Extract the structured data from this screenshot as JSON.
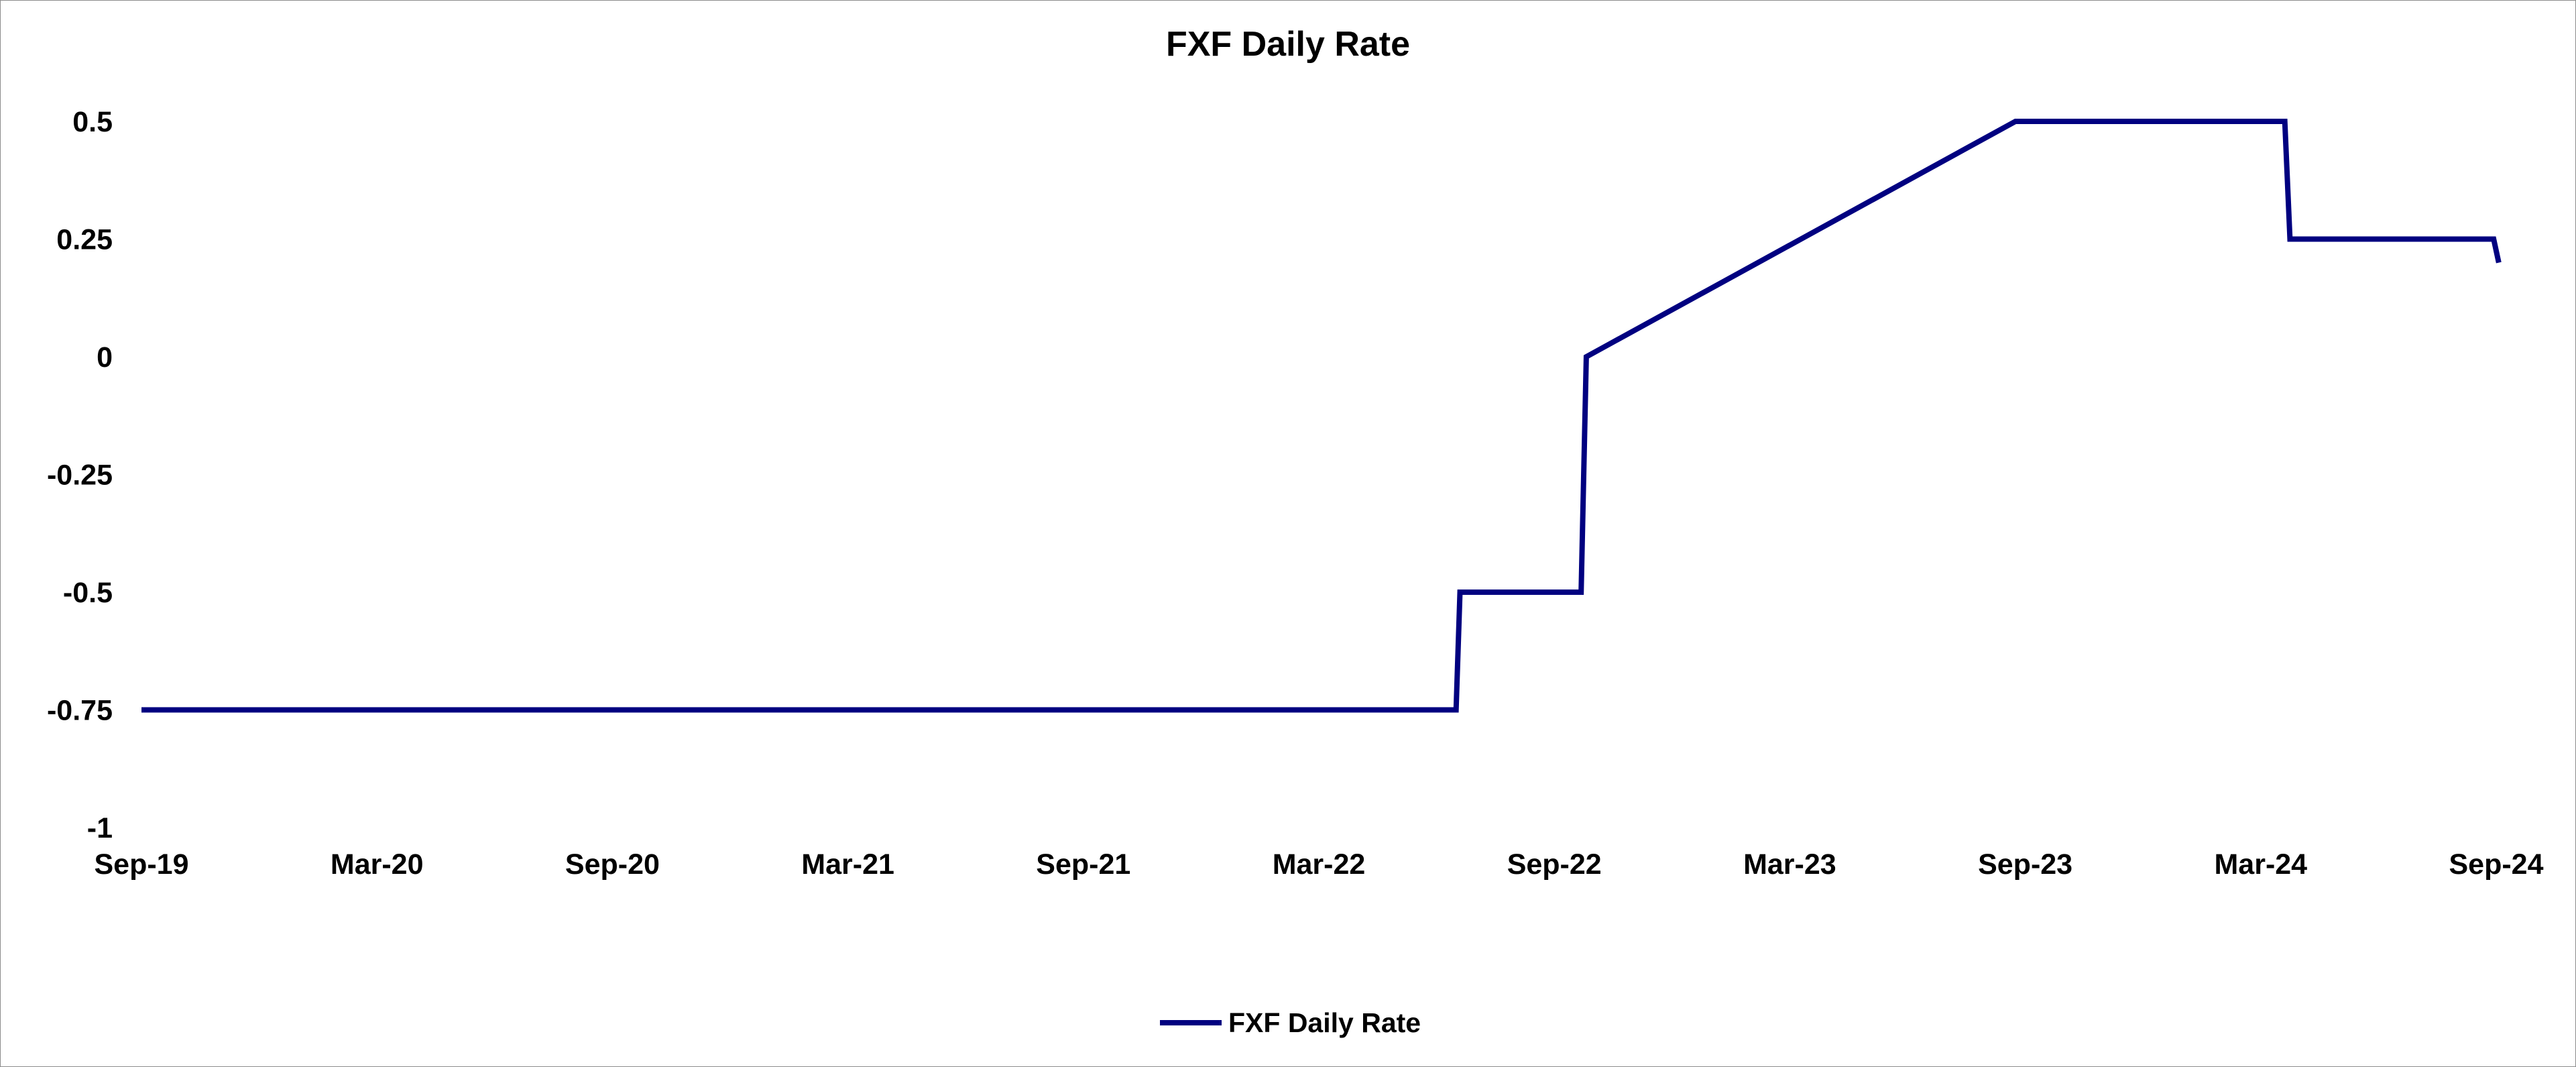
{
  "chart_data": {
    "type": "line",
    "title": "FXF Daily Rate",
    "xlabel": "",
    "ylabel": "",
    "x_ticks": [
      "Sep-19",
      "Mar-20",
      "Sep-20",
      "Mar-21",
      "Sep-21",
      "Mar-22",
      "Sep-22",
      "Mar-23",
      "Sep-23",
      "Mar-24",
      "Sep-24"
    ],
    "y_ticks": [
      "0.5",
      "0.25",
      "0",
      "-0.25",
      "-0.5",
      "-0.75",
      "-1"
    ],
    "ylim": [
      -1,
      0.5
    ],
    "xlim": [
      "2019-09-01",
      "2024-09-01"
    ],
    "grid": false,
    "legend_position": "bottom",
    "series": [
      {
        "name": "FXF Daily Rate",
        "color": "#000080",
        "points": [
          {
            "x": "2019-09-01",
            "y": -0.75
          },
          {
            "x": "2022-06-17",
            "y": -0.75
          },
          {
            "x": "2022-06-20",
            "y": -0.5
          },
          {
            "x": "2022-09-22",
            "y": -0.5
          },
          {
            "x": "2022-09-26",
            "y": 0
          },
          {
            "x": "2023-08-25",
            "y": 0.5
          },
          {
            "x": "2024-03-21",
            "y": 0.5
          },
          {
            "x": "2024-03-25",
            "y": 0.25
          },
          {
            "x": "2024-08-30",
            "y": 0.25
          },
          {
            "x": "2024-09-03",
            "y": 0.2
          }
        ]
      }
    ]
  }
}
